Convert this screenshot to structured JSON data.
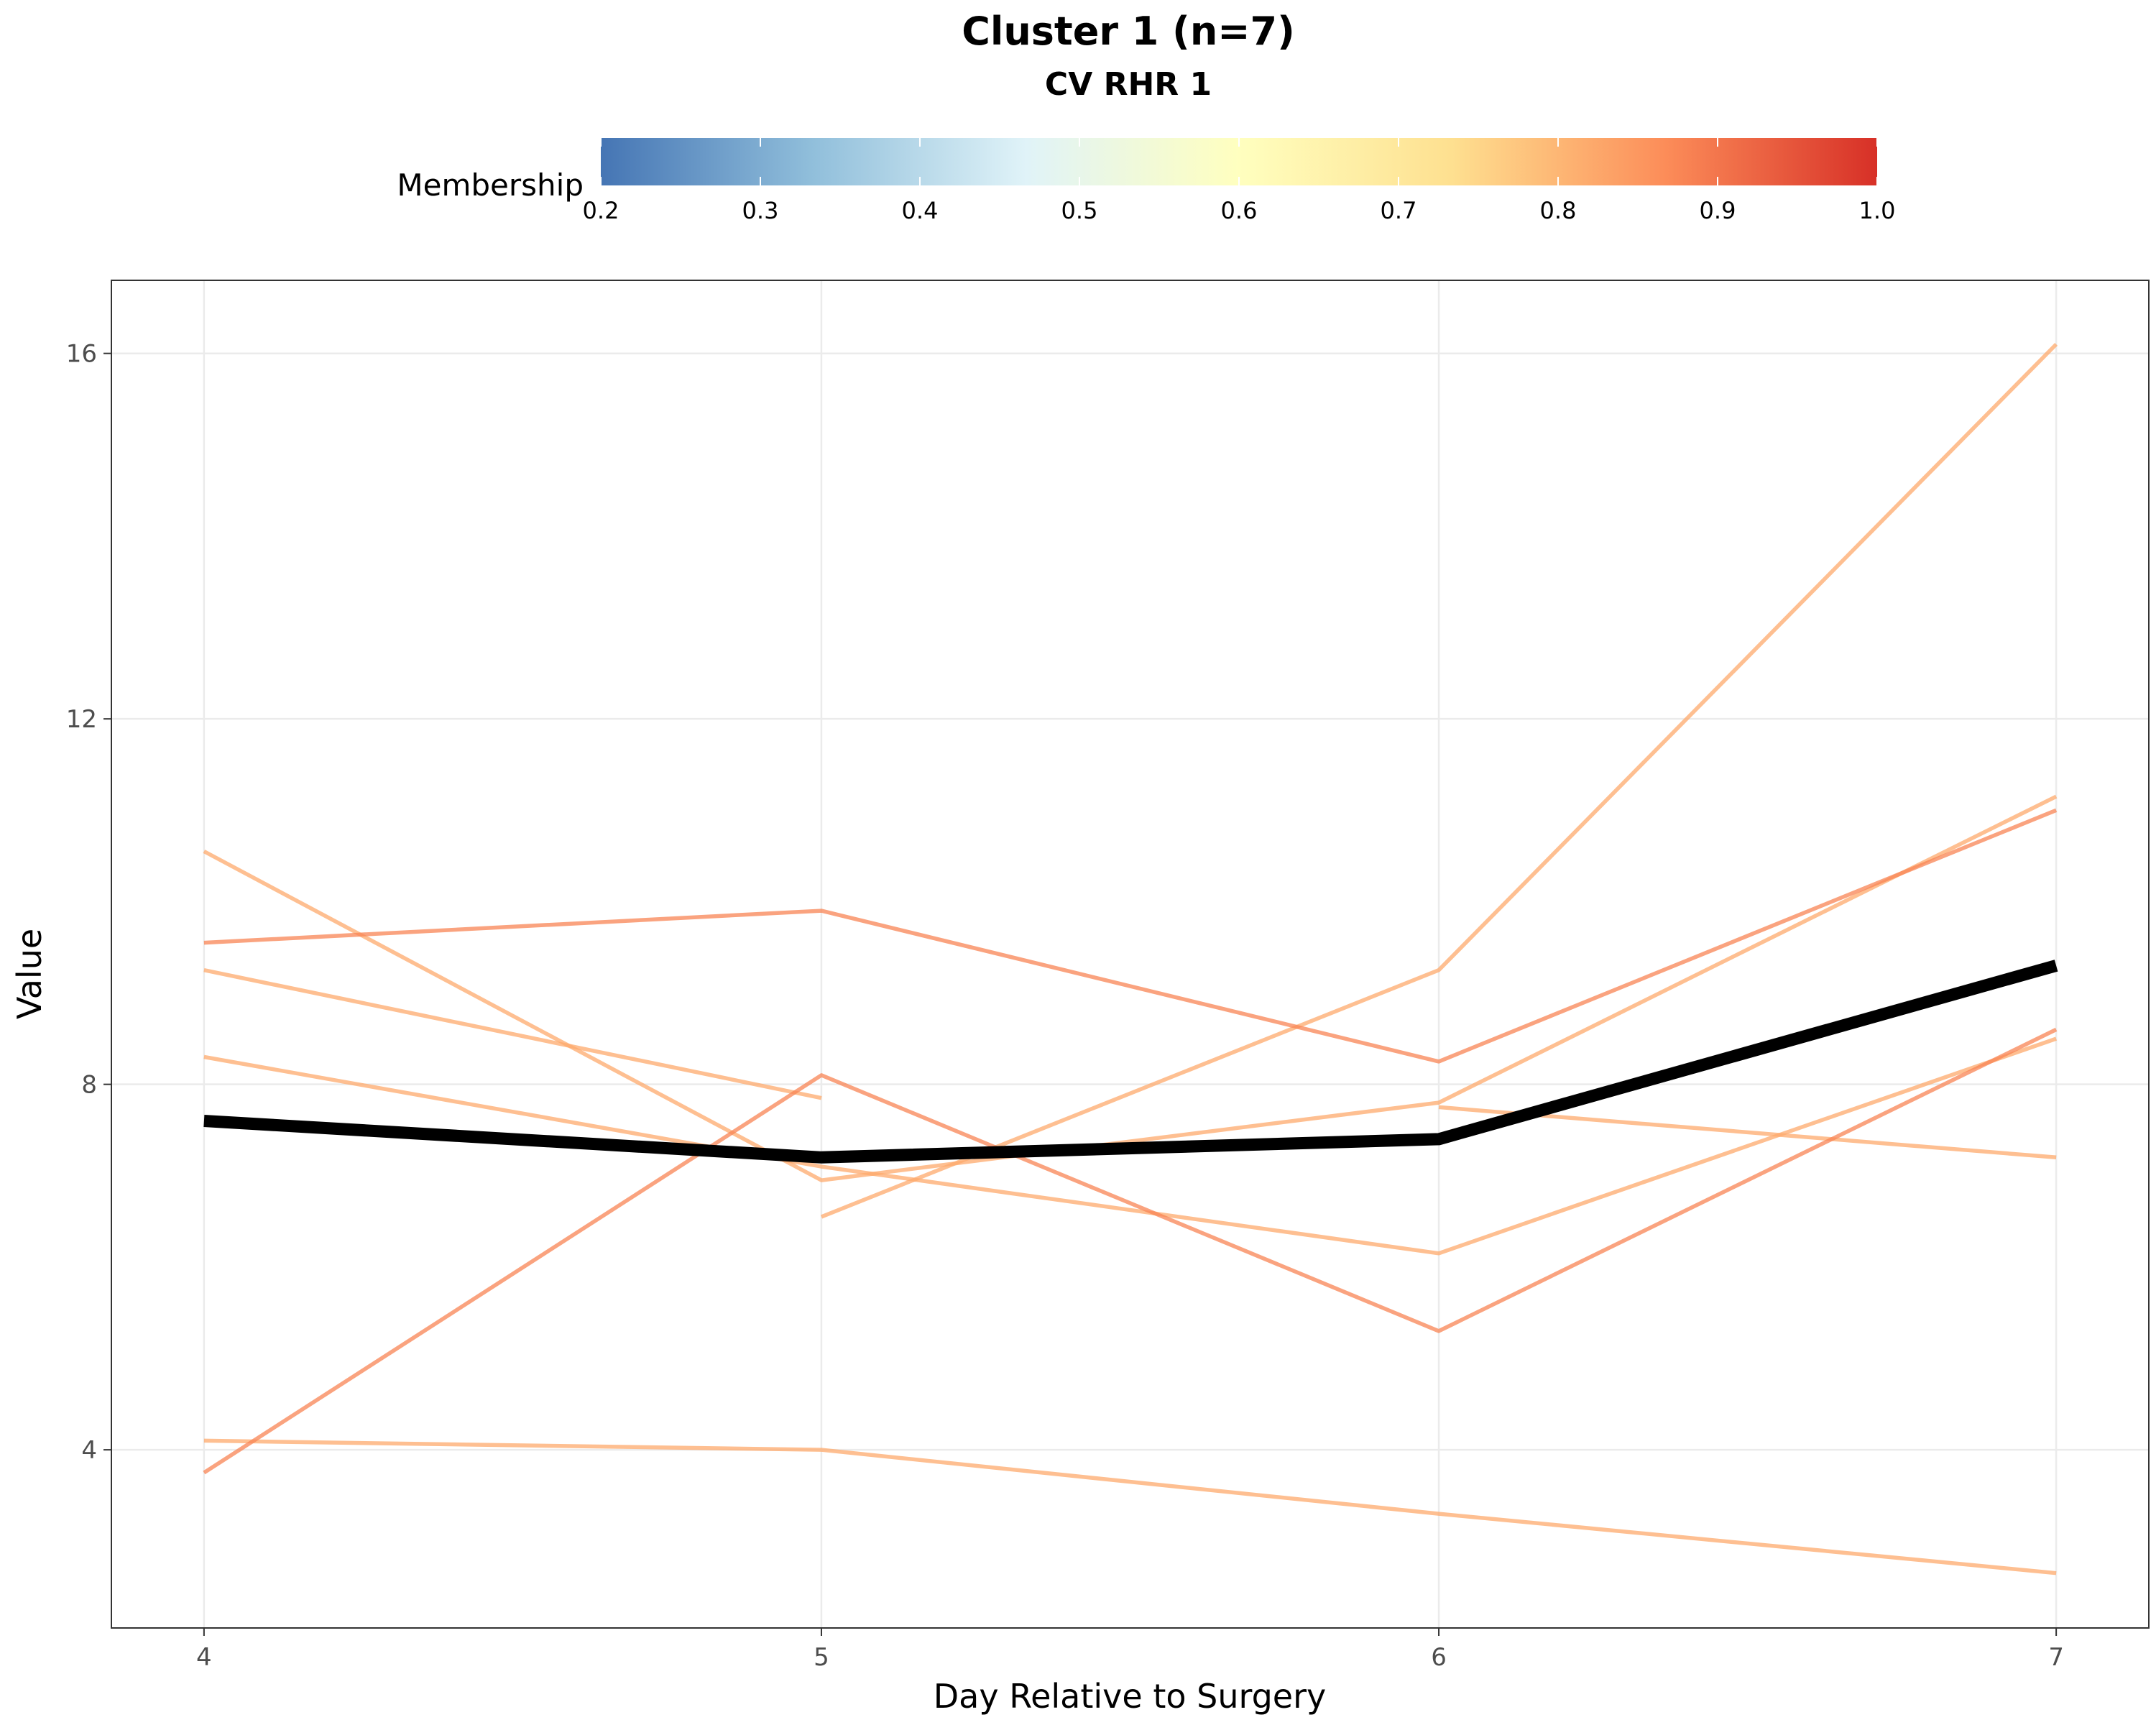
{
  "chart_data": {
    "type": "line",
    "title": "Cluster 1 (n=7)",
    "subtitle": "CV RHR 1",
    "xlabel": "Day Relative to Surgery",
    "ylabel": "Value",
    "x": [
      4,
      5,
      6,
      7
    ],
    "x_ticks": [
      "4",
      "5",
      "6",
      "7"
    ],
    "y_ticks": [
      "4",
      "8",
      "12",
      "16"
    ],
    "xlim": [
      3.85,
      7.15
    ],
    "ylim": [
      2.05,
      16.8
    ],
    "grid": true,
    "legend": {
      "title": "Membership",
      "position": "top",
      "type": "colorbar",
      "range": [
        0.2,
        1.0
      ],
      "ticks": [
        "0.2",
        "0.3",
        "0.4",
        "0.5",
        "0.6",
        "0.7",
        "0.8",
        "0.9",
        "1.0"
      ],
      "colors": [
        "#4575b4",
        "#91bfdb",
        "#e0f3f8",
        "#ffffbf",
        "#fee090",
        "#fc8d59",
        "#d73027"
      ]
    },
    "series": [
      {
        "values": [
          10.55,
          6.95,
          7.8,
          11.15
        ],
        "membership": 0.82
      },
      {
        "values": [
          null,
          6.55,
          9.25,
          16.1
        ],
        "membership": 0.82
      },
      {
        "values": [
          9.25,
          7.85,
          null,
          null
        ],
        "membership": 0.82
      },
      {
        "values": [
          8.3,
          7.1,
          6.15,
          8.5
        ],
        "membership": 0.82
      },
      {
        "values": [
          4.1,
          4.0,
          3.3,
          2.65
        ],
        "membership": 0.82
      },
      {
        "values": [
          null,
          null,
          7.75,
          7.2
        ],
        "membership": 0.82
      },
      {
        "values": [
          9.55,
          9.9,
          8.25,
          11.0
        ],
        "membership": 0.88
      },
      {
        "values": [
          3.75,
          8.1,
          5.3,
          8.6
        ],
        "membership": 0.88
      }
    ],
    "centroid": {
      "values": [
        7.6,
        7.2,
        7.4,
        9.3
      ],
      "color": "#000000"
    }
  }
}
